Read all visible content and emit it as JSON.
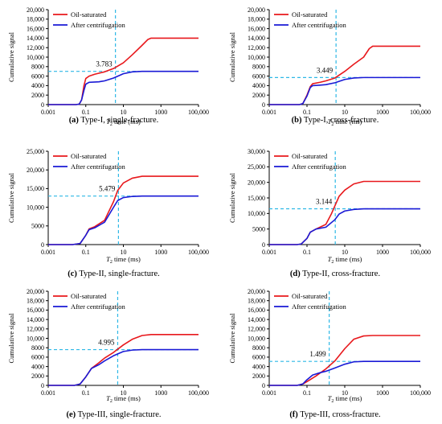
{
  "figure": {
    "axis_color": "#000000",
    "ref_line_color": "#2eb8e6",
    "series_colors": [
      "#e8181c",
      "#1a1ad6"
    ]
  },
  "chart_data": [
    {
      "type": "line",
      "panel_label": "(a)",
      "caption": " Type-I, single-fracture.",
      "xlabel": "T2 time (ms)",
      "ylabel": "Cumulative signal",
      "xscale": "log",
      "xlim": [
        0.001,
        100000
      ],
      "x_ticks": [
        "0.001",
        "0.1",
        "10",
        "1000",
        "100,000"
      ],
      "ylim": [
        0,
        20000
      ],
      "y_ticks": [
        "0",
        "2000",
        "4000",
        "6000",
        "8000",
        "10,000",
        "12,000",
        "14,000",
        "16,000",
        "18,000",
        "20,000"
      ],
      "legend_position": "top-left",
      "series": [
        {
          "name": "Oil-saturated",
          "color": "#e8181c",
          "points": [
            [
              0.001,
              0
            ],
            [
              0.03,
              0
            ],
            [
              0.045,
              100
            ],
            [
              0.06,
              1000
            ],
            [
              0.08,
              4000
            ],
            [
              0.1,
              5500
            ],
            [
              0.15,
              6000
            ],
            [
              0.3,
              6400
            ],
            [
              1,
              6900
            ],
            [
              3,
              7600
            ],
            [
              10,
              8800
            ],
            [
              30,
              10500
            ],
            [
              100,
              12500
            ],
            [
              200,
              13700
            ],
            [
              300,
              14000
            ],
            [
              1000,
              14000
            ],
            [
              100000,
              14000
            ]
          ]
        },
        {
          "name": "After centrifugation",
          "color": "#1a1ad6",
          "points": [
            [
              0.001,
              0
            ],
            [
              0.03,
              0
            ],
            [
              0.045,
              100
            ],
            [
              0.06,
              1000
            ],
            [
              0.08,
              3000
            ],
            [
              0.1,
              4300
            ],
            [
              0.15,
              4700
            ],
            [
              0.5,
              4800
            ],
            [
              1,
              5000
            ],
            [
              3,
              5600
            ],
            [
              10,
              6500
            ],
            [
              30,
              6900
            ],
            [
              100,
              7000
            ],
            [
              100000,
              7000
            ]
          ]
        }
      ],
      "ref_point": {
        "label": "3.783",
        "x": 3.783,
        "y": 7000
      }
    },
    {
      "type": "line",
      "panel_label": "(b)",
      "caption": " Type-I, cross-fracture.",
      "xlabel": "T2 time (ms)",
      "ylabel": "Cumulative signal",
      "xscale": "log",
      "xlim": [
        0.001,
        100000
      ],
      "x_ticks": [
        "0.001",
        "0.1",
        "10",
        "1000",
        "100,000"
      ],
      "ylim": [
        0,
        20000
      ],
      "y_ticks": [
        "0",
        "2000",
        "4000",
        "6000",
        "8000",
        "10,000",
        "12,000",
        "14,000",
        "16,000",
        "18,000",
        "20,000"
      ],
      "legend_position": "top-left",
      "series": [
        {
          "name": "Oil-saturated",
          "color": "#e8181c",
          "points": [
            [
              0.001,
              0
            ],
            [
              0.04,
              0
            ],
            [
              0.06,
              200
            ],
            [
              0.1,
              2000
            ],
            [
              0.15,
              3800
            ],
            [
              0.2,
              4400
            ],
            [
              0.5,
              4700
            ],
            [
              1,
              5000
            ],
            [
              3,
              5600
            ],
            [
              10,
              7000
            ],
            [
              30,
              8500
            ],
            [
              100,
              10000
            ],
            [
              200,
              11800
            ],
            [
              300,
              12300
            ],
            [
              1000,
              12300
            ],
            [
              100000,
              12300
            ]
          ]
        },
        {
          "name": "After centrifugation",
          "color": "#1a1ad6",
          "points": [
            [
              0.001,
              0
            ],
            [
              0.04,
              0
            ],
            [
              0.06,
              200
            ],
            [
              0.1,
              1800
            ],
            [
              0.15,
              3600
            ],
            [
              0.2,
              4000
            ],
            [
              0.5,
              4100
            ],
            [
              1,
              4200
            ],
            [
              3,
              4600
            ],
            [
              10,
              5300
            ],
            [
              30,
              5600
            ],
            [
              100,
              5700
            ],
            [
              100000,
              5700
            ]
          ]
        }
      ],
      "ref_point": {
        "label": "3.449",
        "x": 3.449,
        "y": 5700
      }
    },
    {
      "type": "line",
      "panel_label": "(c)",
      "caption": " Type-II, single-fracture.",
      "xlabel": "T2 time (ms)",
      "ylabel": "Cumulative signal",
      "xscale": "log",
      "xlim": [
        0.001,
        100000
      ],
      "x_ticks": [
        "0.001",
        "0.1",
        "10",
        "1000",
        "100,000"
      ],
      "ylim": [
        0,
        25000
      ],
      "y_ticks": [
        "0",
        "5000",
        "10,000",
        "15,000",
        "20,000",
        "25,000"
      ],
      "legend_position": "top-left",
      "series": [
        {
          "name": "Oil-saturated",
          "color": "#e8181c",
          "points": [
            [
              0.001,
              0
            ],
            [
              0.02,
              0
            ],
            [
              0.05,
              300
            ],
            [
              0.1,
              2500
            ],
            [
              0.15,
              4200
            ],
            [
              0.3,
              4800
            ],
            [
              1,
              6500
            ],
            [
              3,
              11500
            ],
            [
              5,
              14500
            ],
            [
              10,
              16500
            ],
            [
              30,
              17800
            ],
            [
              100,
              18300
            ],
            [
              1000,
              18300
            ],
            [
              100000,
              18300
            ]
          ]
        },
        {
          "name": "After centrifugation",
          "color": "#1a1ad6",
          "points": [
            [
              0.001,
              0
            ],
            [
              0.02,
              0
            ],
            [
              0.05,
              300
            ],
            [
              0.1,
              2500
            ],
            [
              0.15,
              4000
            ],
            [
              0.3,
              4500
            ],
            [
              1,
              6000
            ],
            [
              3,
              10000
            ],
            [
              5,
              11800
            ],
            [
              10,
              12600
            ],
            [
              30,
              12900
            ],
            [
              100,
              13000
            ],
            [
              100000,
              13000
            ]
          ]
        }
      ],
      "ref_point": {
        "label": "5.479",
        "x": 5.479,
        "y": 13000
      }
    },
    {
      "type": "line",
      "panel_label": "(d)",
      "caption": " Type-II, cross-fracture.",
      "xlabel": "T2 time (ms)",
      "ylabel": "Cumulative signal",
      "xscale": "log",
      "xlim": [
        0.001,
        100000
      ],
      "x_ticks": [
        "0.001",
        "0.1",
        "10",
        "1000",
        "100,000"
      ],
      "ylim": [
        0,
        30000
      ],
      "y_ticks": [
        "0",
        "5000",
        "10,000",
        "15,000",
        "20,000",
        "25,000",
        "30,000"
      ],
      "legend_position": "top-left",
      "series": [
        {
          "name": "Oil-saturated",
          "color": "#e8181c",
          "points": [
            [
              0.001,
              0
            ],
            [
              0.03,
              0
            ],
            [
              0.05,
              200
            ],
            [
              0.1,
              2000
            ],
            [
              0.15,
              4000
            ],
            [
              0.3,
              5000
            ],
            [
              1,
              6500
            ],
            [
              2,
              10000
            ],
            [
              5,
              15500
            ],
            [
              10,
              17500
            ],
            [
              30,
              19500
            ],
            [
              100,
              20300
            ],
            [
              1000,
              20300
            ],
            [
              100000,
              20300
            ]
          ]
        },
        {
          "name": "After centrifugation",
          "color": "#1a1ad6",
          "points": [
            [
              0.001,
              0
            ],
            [
              0.03,
              0
            ],
            [
              0.05,
              200
            ],
            [
              0.1,
              2000
            ],
            [
              0.15,
              4000
            ],
            [
              0.3,
              5000
            ],
            [
              1,
              5600
            ],
            [
              3,
              8000
            ],
            [
              5,
              9800
            ],
            [
              10,
              10800
            ],
            [
              30,
              11300
            ],
            [
              100,
              11500
            ],
            [
              100000,
              11500
            ]
          ]
        }
      ],
      "ref_point": {
        "label": "3.144",
        "x": 3.144,
        "y": 11500
      }
    },
    {
      "type": "line",
      "panel_label": "(e)",
      "caption": " Type-III, single-fracture.",
      "xlabel": "T2 time (ms)",
      "ylabel": "Cumulative signal",
      "xscale": "log",
      "xlim": [
        0.001,
        100000
      ],
      "x_ticks": [
        "0.001",
        "0.1",
        "10",
        "1000",
        "100,000"
      ],
      "ylim": [
        0,
        20000
      ],
      "y_ticks": [
        "0",
        "2000",
        "4000",
        "6000",
        "8000",
        "10,000",
        "12,000",
        "14,000",
        "16,000",
        "18,000",
        "20,000"
      ],
      "legend_position": "top-left",
      "series": [
        {
          "name": "Oil-saturated",
          "color": "#e8181c",
          "points": [
            [
              0.001,
              0
            ],
            [
              0.025,
              0
            ],
            [
              0.05,
              300
            ],
            [
              0.1,
              1800
            ],
            [
              0.2,
              3600
            ],
            [
              0.5,
              4800
            ],
            [
              1,
              5800
            ],
            [
              3,
              7000
            ],
            [
              10,
              8600
            ],
            [
              30,
              9800
            ],
            [
              100,
              10600
            ],
            [
              300,
              10800
            ],
            [
              1000,
              10800
            ],
            [
              100000,
              10800
            ]
          ]
        },
        {
          "name": "After centrifugation",
          "color": "#1a1ad6",
          "points": [
            [
              0.001,
              0
            ],
            [
              0.025,
              0
            ],
            [
              0.05,
              300
            ],
            [
              0.1,
              1800
            ],
            [
              0.2,
              3600
            ],
            [
              0.5,
              4400
            ],
            [
              1,
              5200
            ],
            [
              3,
              6300
            ],
            [
              10,
              7200
            ],
            [
              30,
              7500
            ],
            [
              100,
              7600
            ],
            [
              100000,
              7600
            ]
          ]
        }
      ],
      "ref_point": {
        "label": "4.995",
        "x": 4.995,
        "y": 7600
      }
    },
    {
      "type": "line",
      "panel_label": "(f)",
      "caption": " Type-III, cross-fracture.",
      "xlabel": "T2 time (ms)",
      "ylabel": "Cumulative signal",
      "xscale": "log",
      "xlim": [
        0.001,
        100000
      ],
      "x_ticks": [
        "0.001",
        "0.1",
        "10",
        "1000",
        "100,000"
      ],
      "ylim": [
        0,
        20000
      ],
      "y_ticks": [
        "0",
        "2000",
        "4000",
        "6000",
        "8000",
        "10,000",
        "12,000",
        "14,000",
        "16,000",
        "18,000",
        "20,000"
      ],
      "legend_position": "top-left",
      "series": [
        {
          "name": "Oil-saturated",
          "color": "#e8181c",
          "points": [
            [
              0.001,
              0
            ],
            [
              0.03,
              0
            ],
            [
              0.06,
              300
            ],
            [
              0.1,
              800
            ],
            [
              0.3,
              2000
            ],
            [
              1,
              3500
            ],
            [
              3,
              5200
            ],
            [
              10,
              7800
            ],
            [
              30,
              9800
            ],
            [
              100,
              10500
            ],
            [
              300,
              10600
            ],
            [
              1000,
              10600
            ],
            [
              100000,
              10600
            ]
          ]
        },
        {
          "name": "After centrifugation",
          "color": "#1a1ad6",
          "points": [
            [
              0.001,
              0
            ],
            [
              0.03,
              0
            ],
            [
              0.06,
              300
            ],
            [
              0.1,
              1200
            ],
            [
              0.2,
              2200
            ],
            [
              0.5,
              2700
            ],
            [
              1,
              3000
            ],
            [
              3,
              3700
            ],
            [
              10,
              4500
            ],
            [
              30,
              5000
            ],
            [
              100,
              5100
            ],
            [
              100000,
              5100
            ]
          ]
        }
      ],
      "ref_point": {
        "label": "1.499",
        "x": 1.499,
        "y": 5100
      }
    }
  ]
}
